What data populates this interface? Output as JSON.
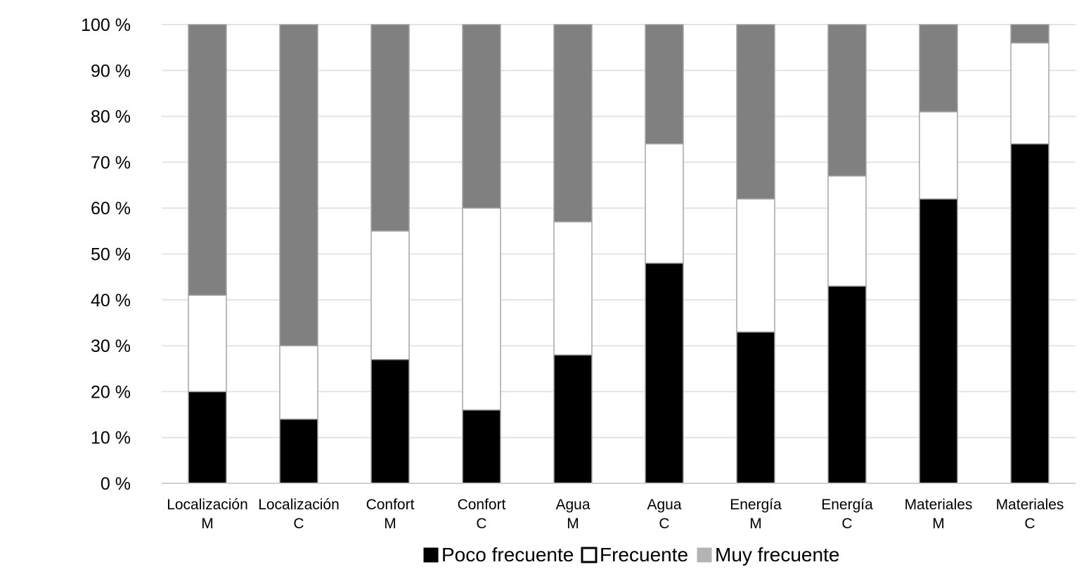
{
  "chart_data": {
    "type": "bar",
    "stacked": true,
    "percent": true,
    "categories": [
      [
        "Localización",
        "M"
      ],
      [
        "Localización",
        "C"
      ],
      [
        "Confort",
        "M"
      ],
      [
        "Confort",
        "C"
      ],
      [
        "Agua",
        "M"
      ],
      [
        "Agua",
        "C"
      ],
      [
        "Energía",
        "M"
      ],
      [
        "Energía",
        "C"
      ],
      [
        "Materiales",
        "M"
      ],
      [
        "Materiales",
        "C"
      ]
    ],
    "series": [
      {
        "name": "Poco frecuente",
        "color": "#000000",
        "values": [
          20,
          14,
          27,
          16,
          28,
          48,
          33,
          43,
          62,
          74
        ]
      },
      {
        "name": "Frecuente",
        "color": "#ffffff",
        "values": [
          21,
          16,
          28,
          44,
          29,
          26,
          29,
          24,
          19,
          22
        ]
      },
      {
        "name": "Muy frecuente",
        "color": "#808080",
        "legend_color": "#b3b3b3",
        "values": [
          59,
          70,
          45,
          40,
          43,
          26,
          38,
          33,
          19,
          4
        ]
      }
    ],
    "ylim": [
      0,
      100
    ],
    "yticks": [
      "0 %",
      "10 %",
      "20 %",
      "30 %",
      "40 %",
      "50 %",
      "60 %",
      "70 %",
      "80 %",
      "90 %",
      "100 %"
    ],
    "grid": true,
    "legend_position": "bottom"
  }
}
